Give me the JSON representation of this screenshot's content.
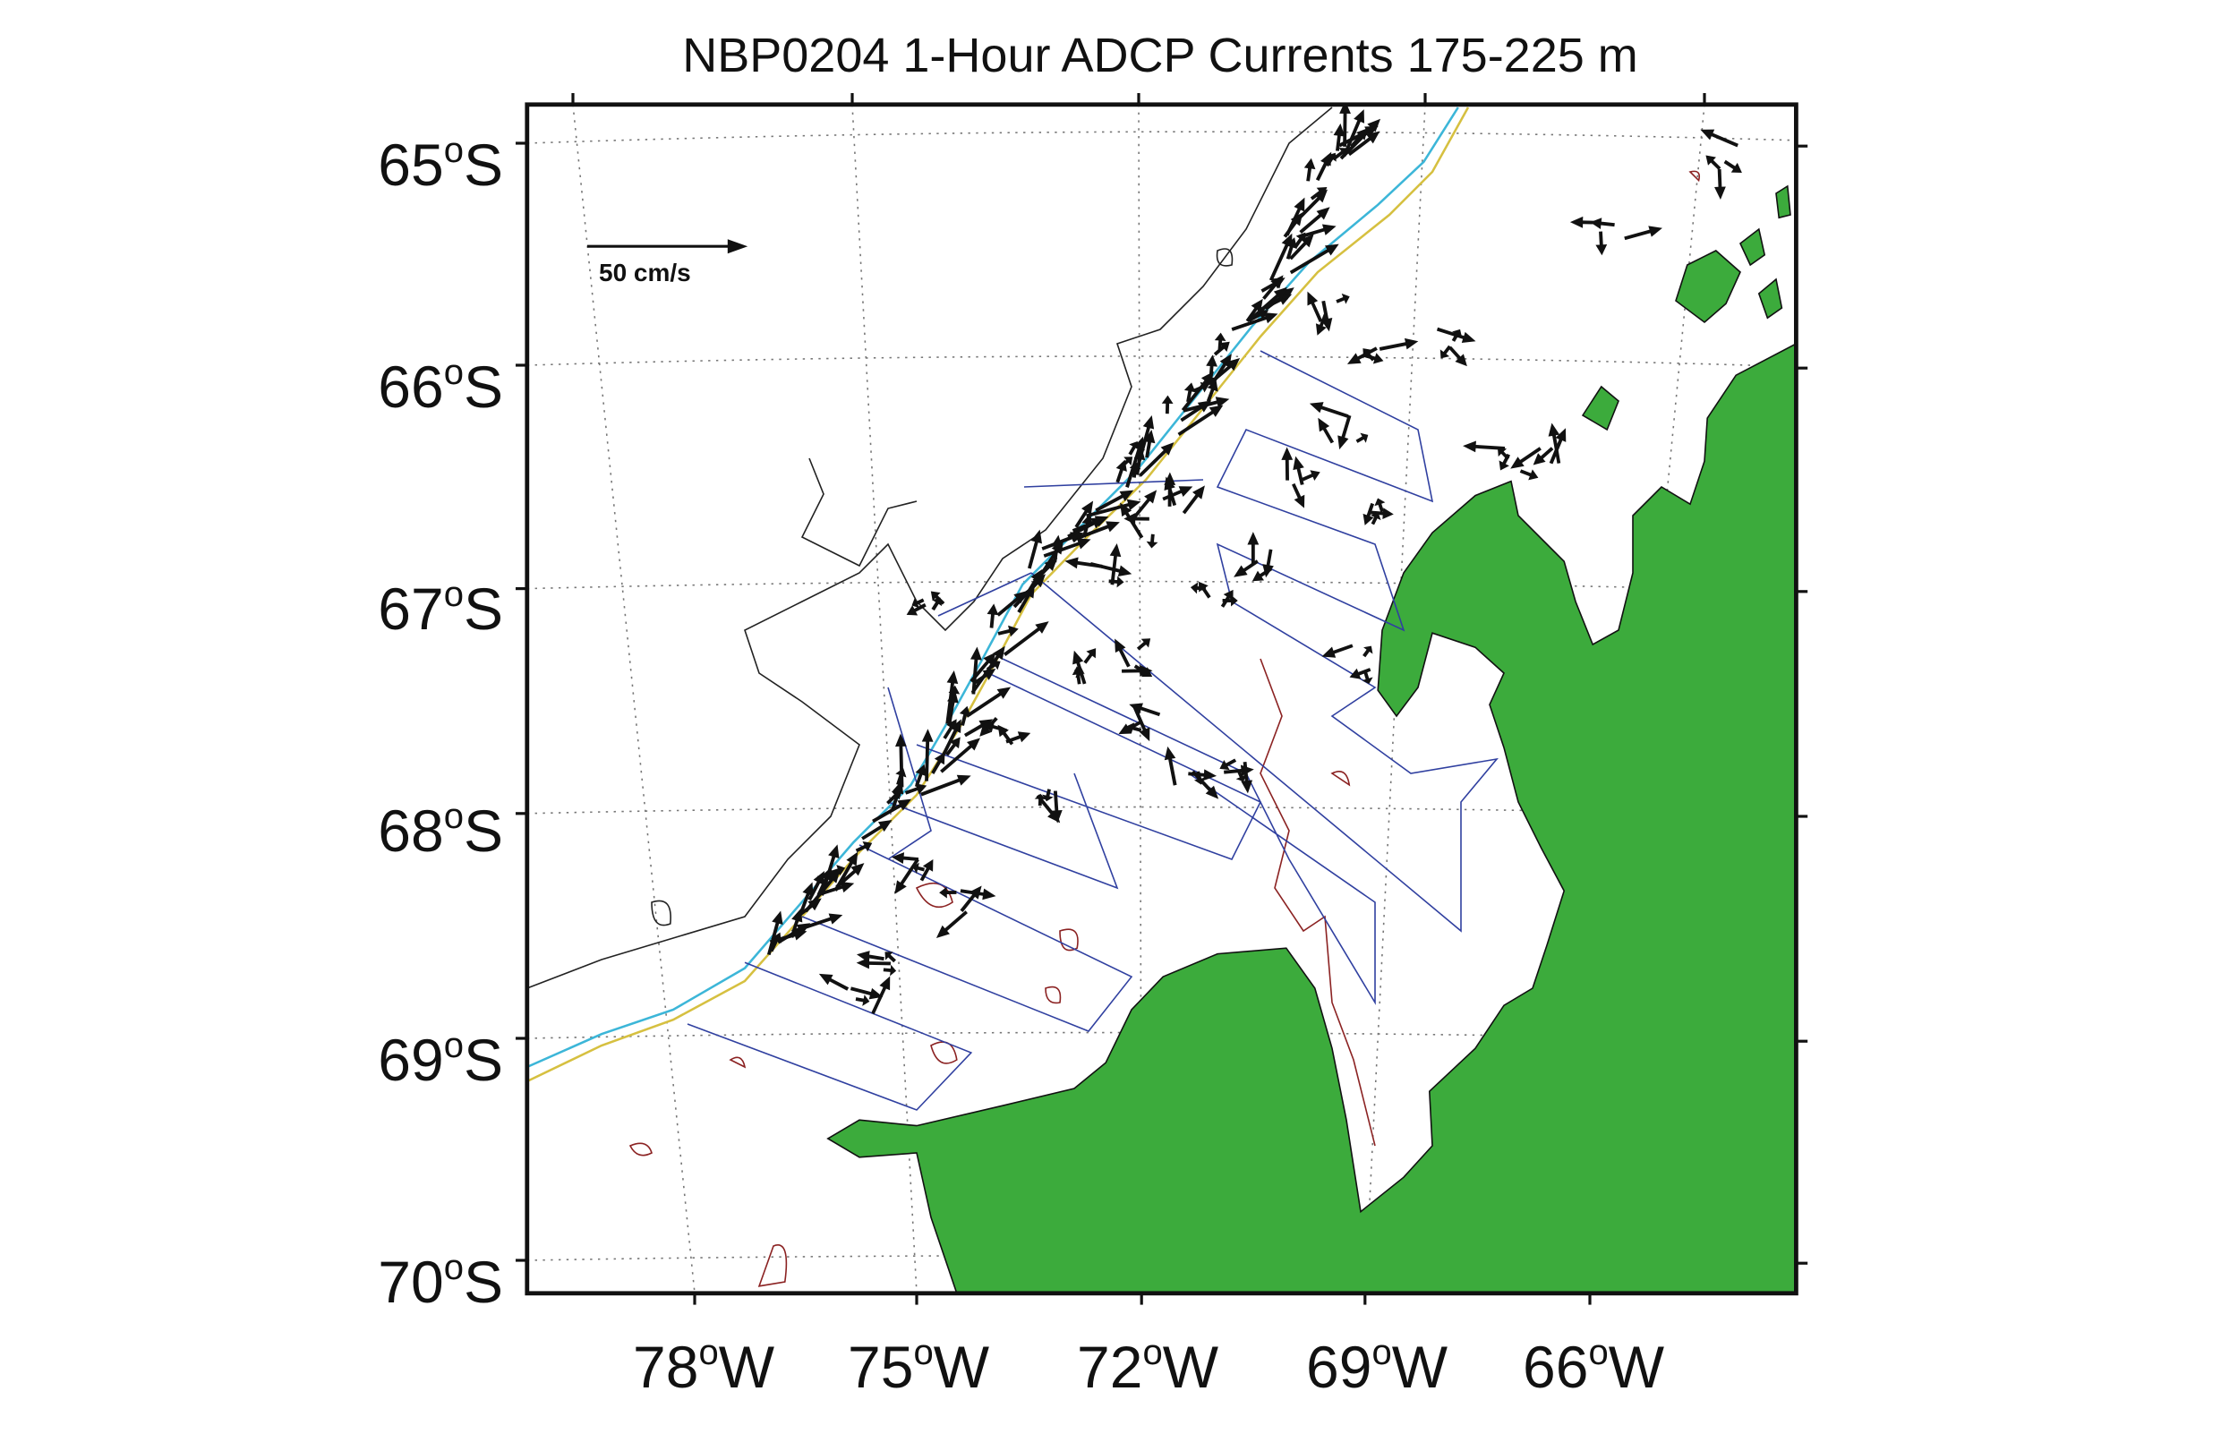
{
  "title": "NBP0204 1-Hour ADCP Currents 175-225 m",
  "scale_label": "50 cm/s",
  "lat_labels": [
    {
      "deg": "65",
      "mark": "o",
      "hem": "S"
    },
    {
      "deg": "66",
      "mark": "o",
      "hem": "S"
    },
    {
      "deg": "67",
      "mark": "o",
      "hem": "S"
    },
    {
      "deg": "68",
      "mark": "o",
      "hem": "S"
    },
    {
      "deg": "69",
      "mark": "o",
      "hem": "S"
    },
    {
      "deg": "70",
      "mark": "o",
      "hem": "S"
    }
  ],
  "lon_labels": [
    {
      "deg": "78",
      "mark": "o",
      "hem": "W"
    },
    {
      "deg": "75",
      "mark": "o",
      "hem": "W"
    },
    {
      "deg": "72",
      "mark": "o",
      "hem": "W"
    },
    {
      "deg": "69",
      "mark": "o",
      "hem": "W"
    },
    {
      "deg": "66",
      "mark": "o",
      "hem": "W"
    }
  ]
}
